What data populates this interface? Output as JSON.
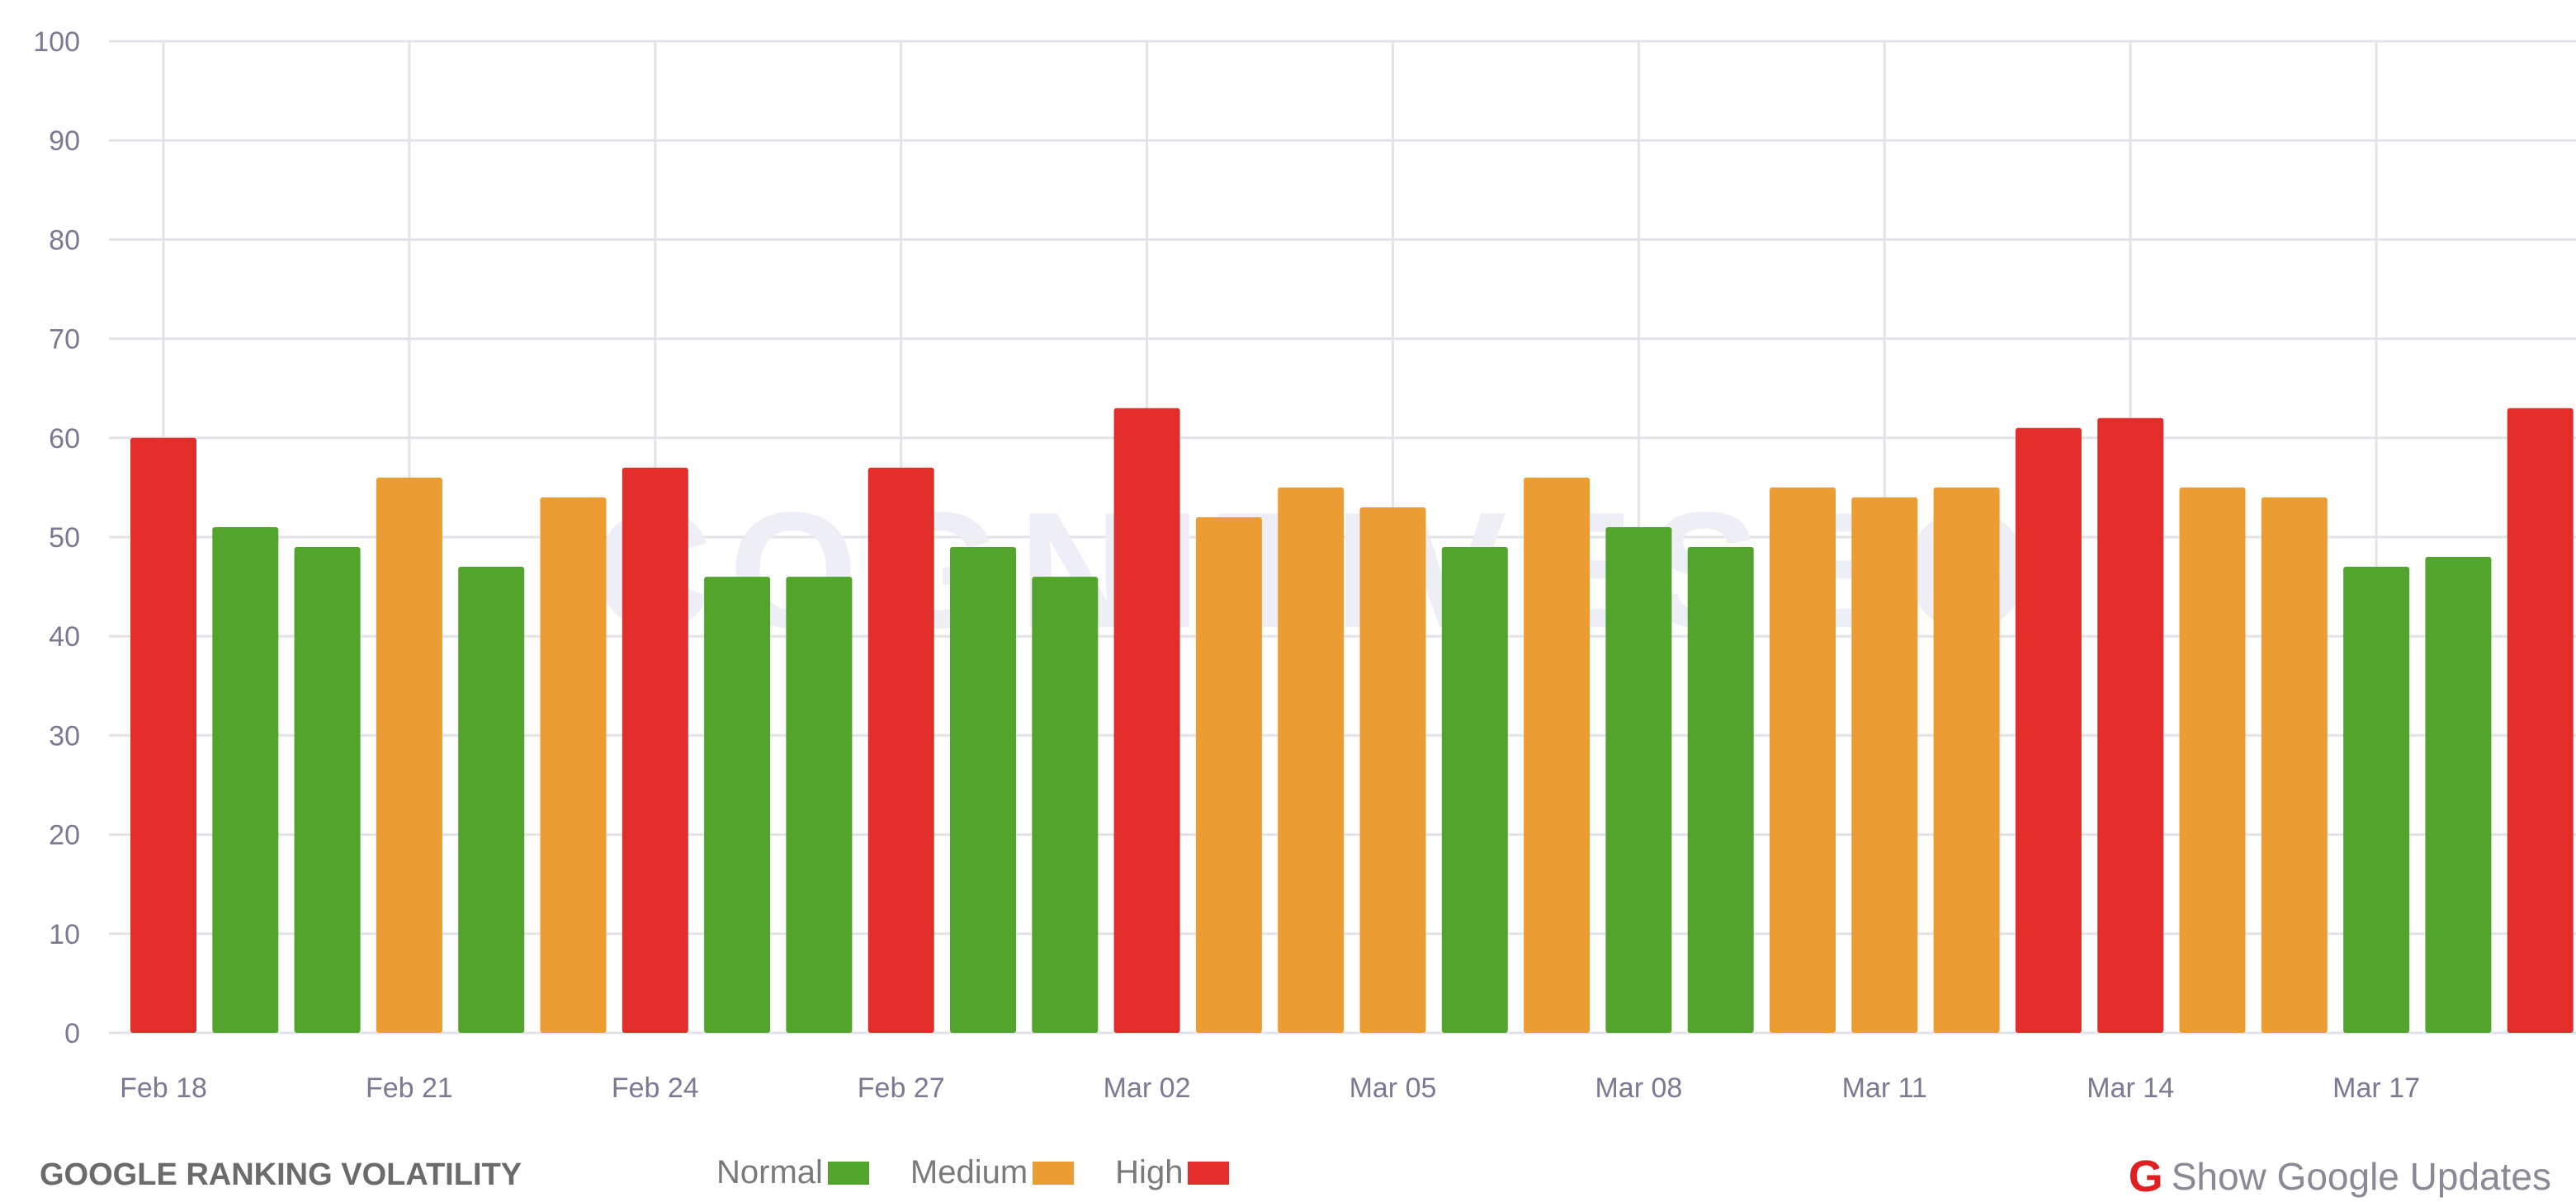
{
  "chart_data": {
    "type": "bar",
    "title": "GOOGLE RANKING VOLATILITY",
    "xlabel": "",
    "ylabel": "",
    "ylim": [
      0,
      100
    ],
    "yticks": [
      "0",
      "10",
      "20",
      "30",
      "40",
      "50",
      "60",
      "70",
      "80",
      "90",
      "100"
    ],
    "grid": true,
    "categories": [
      "Feb 18",
      "Feb 19",
      "Feb 20",
      "Feb 21",
      "Feb 22",
      "Feb 23",
      "Feb 24",
      "Feb 25",
      "Feb 26",
      "Feb 27",
      "Feb 28",
      "Mar 01",
      "Mar 02",
      "Mar 03",
      "Mar 04",
      "Mar 05",
      "Mar 06",
      "Mar 07",
      "Mar 08",
      "Mar 09",
      "Mar 10",
      "Mar 11",
      "Mar 12",
      "Mar 13",
      "Mar 14",
      "Mar 15",
      "Mar 16",
      "Mar 17",
      "Mar 18",
      "Mar 19"
    ],
    "xtick_labels": [
      "Feb 18",
      "Feb 21",
      "Feb 24",
      "Feb 27",
      "Mar 02",
      "Mar 05",
      "Mar 08",
      "Mar 11",
      "Mar 14",
      "Mar 17"
    ],
    "xtick_indices": [
      0,
      3,
      6,
      9,
      12,
      15,
      18,
      21,
      24,
      27
    ],
    "values": [
      60,
      51,
      49,
      56,
      47,
      54,
      57,
      46,
      46,
      57,
      49,
      46,
      63,
      52,
      55,
      53,
      49,
      56,
      51,
      49,
      55,
      54,
      55,
      61,
      62,
      55,
      54,
      47,
      48,
      63
    ],
    "levels": [
      "High",
      "Normal",
      "Normal",
      "Medium",
      "Normal",
      "Medium",
      "High",
      "Normal",
      "Normal",
      "High",
      "Normal",
      "Normal",
      "High",
      "Medium",
      "Medium",
      "Medium",
      "Normal",
      "Medium",
      "Normal",
      "Normal",
      "Medium",
      "Medium",
      "Medium",
      "High",
      "High",
      "Medium",
      "Medium",
      "Normal",
      "Normal",
      "High"
    ],
    "legend": [
      {
        "label": "Normal",
        "color": "#52a42c"
      },
      {
        "label": "Medium",
        "color": "#eb9c33"
      },
      {
        "label": "High",
        "color": "#e32d2a"
      }
    ],
    "legend_placement": "bottom"
  },
  "watermark": "COGNITIVESEO",
  "footer": {
    "title": "GOOGLE RANKING VOLATILITY",
    "show_updates_label": "Show Google Updates",
    "g_icon": "G"
  }
}
